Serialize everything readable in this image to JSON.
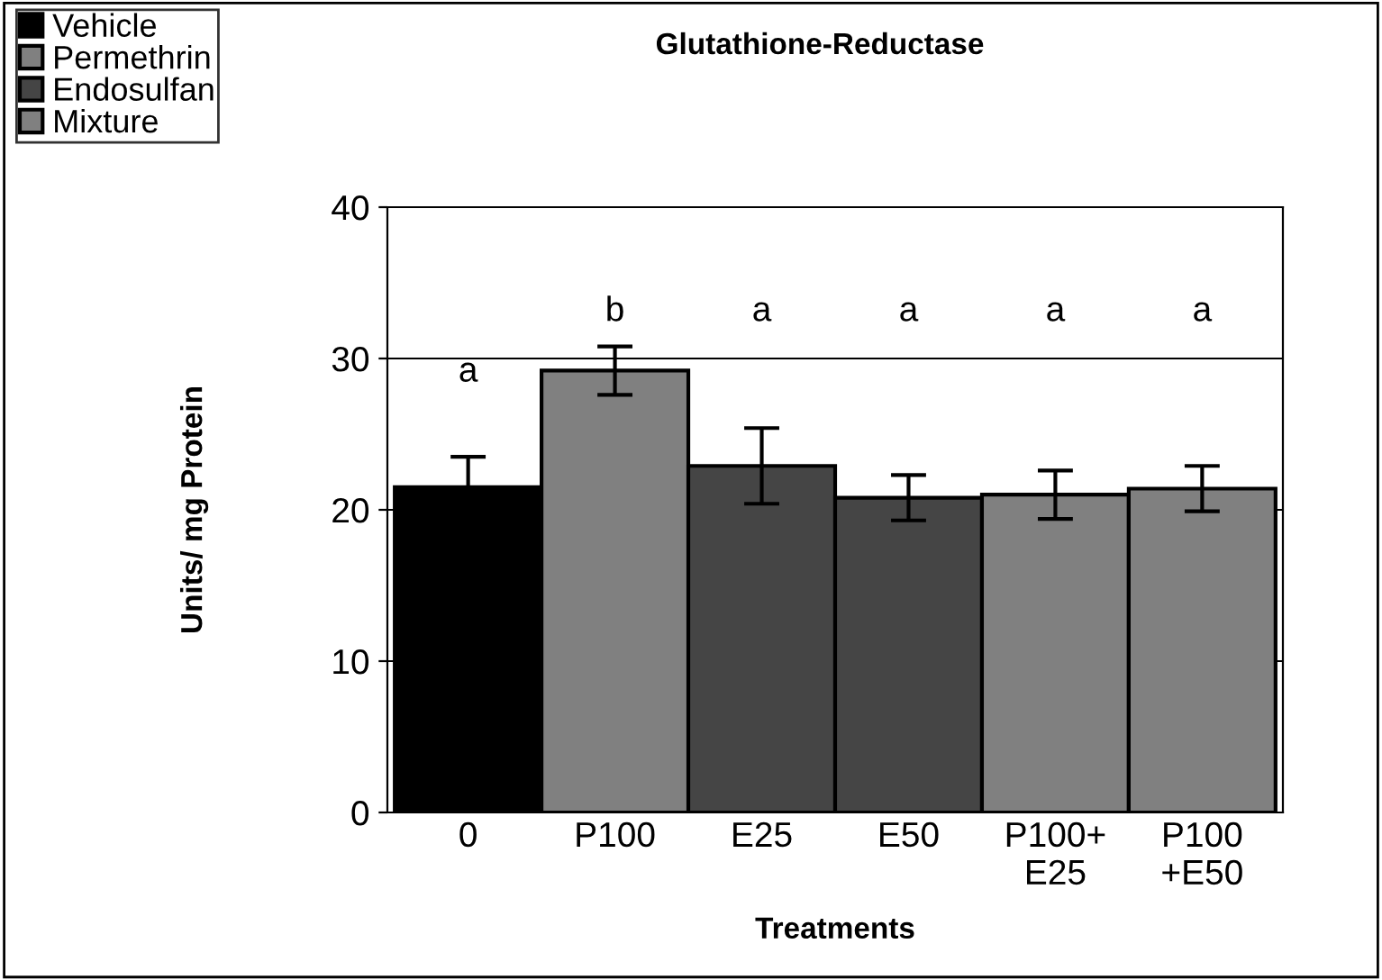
{
  "chart_data": {
    "type": "bar",
    "title": "Glutathione-Reductase",
    "xlabel": "Treatments",
    "ylabel": "Units/ mg Protein",
    "categories": [
      "0",
      "P100",
      "E25",
      "E50",
      "P100+\nE25",
      "P100\n+E50"
    ],
    "series": [
      {
        "name": "Vehicle",
        "color": "#000000",
        "values": [
          21.5,
          null,
          null,
          null,
          null,
          null
        ],
        "errors": [
          2.0,
          null,
          null,
          null,
          null,
          null
        ]
      },
      {
        "name": "Permethrin",
        "color": "#808080",
        "values": [
          null,
          29.2,
          null,
          null,
          null,
          null
        ],
        "errors": [
          null,
          1.6,
          null,
          null,
          null,
          null
        ]
      },
      {
        "name": "Endosulfan",
        "color": "#454545",
        "values": [
          null,
          null,
          22.9,
          20.8,
          null,
          null
        ],
        "errors": [
          null,
          null,
          2.5,
          1.5,
          null,
          null
        ]
      },
      {
        "name": "Mixture",
        "color": "#808080",
        "values": [
          null,
          null,
          null,
          null,
          21.0,
          21.4
        ],
        "errors": [
          null,
          null,
          null,
          null,
          1.6,
          1.5
        ]
      }
    ],
    "annotations": [
      "a",
      "b",
      "a",
      "a",
      "a",
      "a"
    ],
    "ylim": [
      0,
      40
    ],
    "yticks": [
      0,
      10,
      20,
      30,
      40
    ],
    "grid": "y",
    "legend": "top left"
  }
}
